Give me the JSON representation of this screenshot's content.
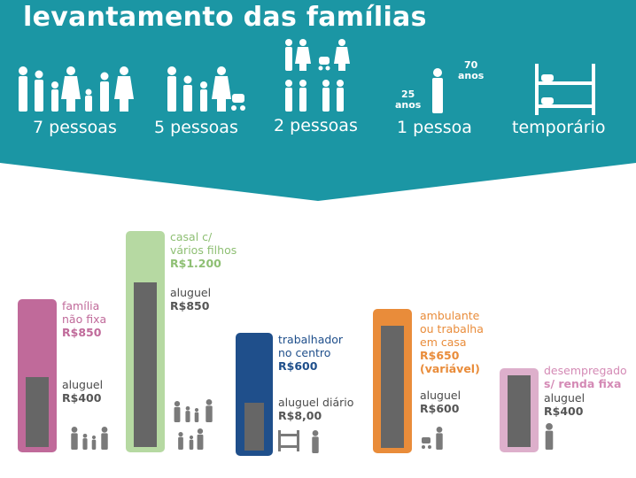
{
  "title": "levantamento das famílias",
  "categories": [
    {
      "key": "c7",
      "label": "7 pessoas",
      "icon": "family-of-seven-icon"
    },
    {
      "key": "c5",
      "label": "5 pessoas",
      "icon": "family-of-five-icon"
    },
    {
      "key": "c2",
      "label": "2 pessoas",
      "icon": "couples-icon"
    },
    {
      "key": "c1",
      "label": "1 pessoa",
      "icon": "single-person-icon",
      "age_left": "25",
      "age_left_unit": "anos",
      "age_right": "70",
      "age_right_unit": "anos"
    },
    {
      "key": "ct",
      "label": "temporário",
      "icon": "bunk-bed-icon"
    }
  ],
  "colors": {
    "banner": "#1b96a4",
    "inner_bar": "#666666",
    "value_gray": "#555555",
    "label_gray": "#4a4a4a",
    "icon_gray": "#7a7a7a"
  },
  "chart_data": {
    "type": "bar",
    "x": [
      "7 pessoas",
      "5 pessoas",
      "2 pessoas",
      "1 pessoa",
      "temporário"
    ],
    "series": [
      {
        "name": "renda",
        "values": [
          850,
          1200,
          600,
          650,
          null
        ]
      },
      {
        "name": "aluguel",
        "values": [
          400,
          850,
          8.0,
          600,
          400
        ]
      }
    ],
    "bars": [
      {
        "key": "b7",
        "outer_color": "#c06a9a",
        "label_color": "#c06a9a",
        "income_lines": [
          "família",
          "não fixa"
        ],
        "income_value": "R$850",
        "rent_label": "aluguel",
        "rent_value": "R$400",
        "icon": "family-icon"
      },
      {
        "key": "b5",
        "outer_color": "#b6d9a2",
        "label_color": "#8ebf73",
        "income_lines": [
          "casal c/",
          "vários filhos"
        ],
        "income_value": "R$1.200",
        "rent_label": "aluguel",
        "rent_value": "R$850",
        "icon": "family-group-icon"
      },
      {
        "key": "b2",
        "outer_color": "#1f4f8b",
        "label_color": "#1f4f8b",
        "income_lines": [
          "trabalhador",
          "no centro"
        ],
        "income_value": "R$600",
        "rent_label": "aluguel diário",
        "rent_value": "R$8,00",
        "icon": "bunk-bed-person-icon"
      },
      {
        "key": "b1",
        "outer_color": "#e98c3a",
        "label_color": "#e98c3a",
        "income_lines": [
          "ambulante",
          "ou trabalha",
          "em casa"
        ],
        "income_value": "R$650",
        "income_note": "(variável)",
        "rent_label": "aluguel",
        "rent_value": "R$600",
        "icon": "stroller-person-icon"
      },
      {
        "key": "bt",
        "outer_color": "#ddafcb",
        "label_color": "#d48ab5",
        "income_lines": [
          "desempregado"
        ],
        "income_value": "s/ renda fixa",
        "rent_label": "aluguel",
        "rent_value": "R$400",
        "icon": "person-icon"
      }
    ]
  }
}
